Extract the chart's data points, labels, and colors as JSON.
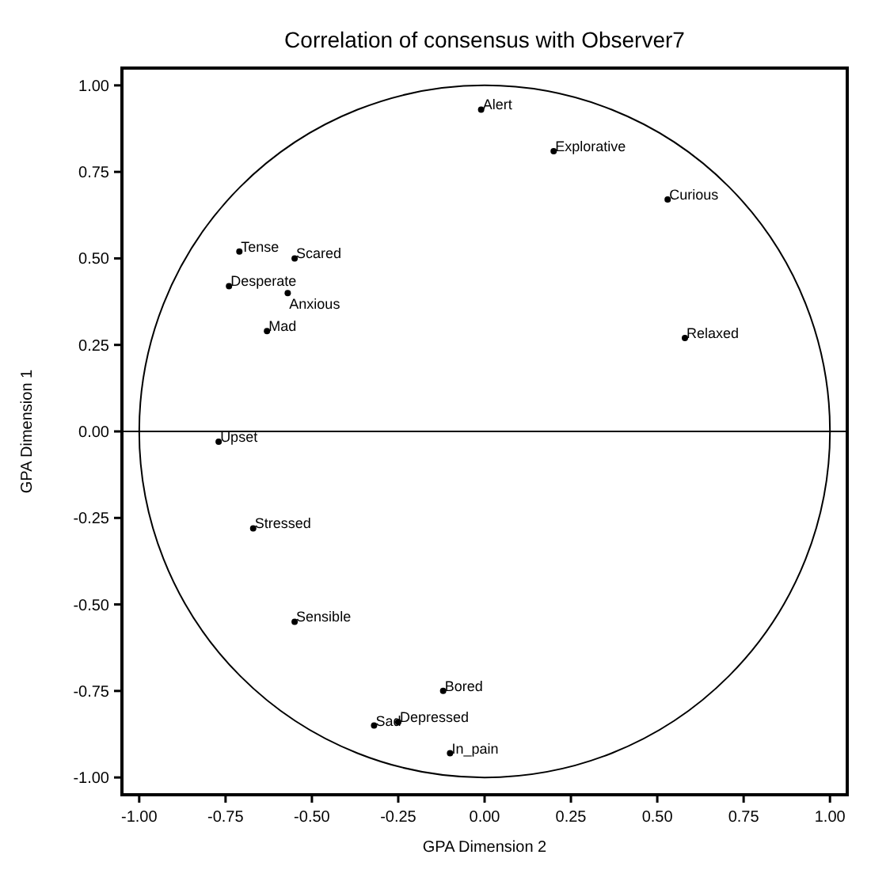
{
  "chart_data": {
    "type": "scatter",
    "title": "Correlation of consensus with Observer7",
    "xlabel": "GPA Dimension 2",
    "ylabel": "GPA Dimension 1",
    "xlim": [
      -1.05,
      1.05
    ],
    "ylim": [
      -1.05,
      1.05
    ],
    "xticks": [
      {
        "value": -1,
        "label": "-1.00"
      },
      {
        "value": -0.75,
        "label": "-0.75"
      },
      {
        "value": -0.5,
        "label": "-0.50"
      },
      {
        "value": -0.25,
        "label": "-0.25"
      },
      {
        "value": 0,
        "label": "0.00"
      },
      {
        "value": 0.25,
        "label": "0.25"
      },
      {
        "value": 0.5,
        "label": "0.50"
      },
      {
        "value": 0.75,
        "label": "0.75"
      },
      {
        "value": 1,
        "label": "1.00"
      }
    ],
    "yticks": [
      {
        "value": -1,
        "label": "-1.00"
      },
      {
        "value": -0.75,
        "label": "-0.75"
      },
      {
        "value": -0.5,
        "label": "-0.50"
      },
      {
        "value": -0.25,
        "label": "-0.25"
      },
      {
        "value": 0,
        "label": "0.00"
      },
      {
        "value": 0.25,
        "label": "0.25"
      },
      {
        "value": 0.5,
        "label": "0.50"
      },
      {
        "value": 0.75,
        "label": "0.75"
      },
      {
        "value": 1,
        "label": "1.00"
      }
    ],
    "grid": false,
    "marker": "circle",
    "ref_lines": [
      {
        "axis": "y",
        "value": 0,
        "color": "#000000"
      }
    ],
    "series": [
      {
        "color": "#000000",
        "x": [
          -0.01,
          0.2,
          0.53,
          0.58,
          -0.71,
          -0.55,
          -0.74,
          -0.57,
          -0.63,
          -0.77,
          -0.67,
          -0.55,
          -0.12,
          -0.32,
          -0.25,
          -0.1
        ],
        "values": [
          0.93,
          0.81,
          0.67,
          0.27,
          0.52,
          0.5,
          0.42,
          0.4,
          0.29,
          -0.03,
          -0.28,
          -0.55,
          -0.75,
          -0.85,
          -0.84,
          -0.93
        ]
      }
    ],
    "annotations": [
      {
        "text": "Alert",
        "x": -0.01,
        "y": 0.93
      },
      {
        "text": "Explorative",
        "x": 0.2,
        "y": 0.81
      },
      {
        "text": "Curious",
        "x": 0.53,
        "y": 0.67
      },
      {
        "text": "Relaxed",
        "x": 0.58,
        "y": 0.27
      },
      {
        "text": "Tense",
        "x": -0.71,
        "y": 0.52
      },
      {
        "text": "Scared",
        "x": -0.55,
        "y": 0.5
      },
      {
        "text": "Desperate",
        "x": -0.74,
        "y": 0.42
      },
      {
        "text": "Anxious",
        "x": -0.57,
        "y": 0.4
      },
      {
        "text": "Mad",
        "x": -0.63,
        "y": 0.29
      },
      {
        "text": "Upset",
        "x": -0.77,
        "y": -0.03
      },
      {
        "text": "Stressed",
        "x": -0.67,
        "y": -0.28
      },
      {
        "text": "Sensible",
        "x": -0.55,
        "y": -0.55
      },
      {
        "text": "Bored",
        "x": -0.12,
        "y": -0.75
      },
      {
        "text": "Sad",
        "x": -0.32,
        "y": -0.85
      },
      {
        "text": "Depressed",
        "x": -0.25,
        "y": -0.84
      },
      {
        "text": "In_pain",
        "x": -0.1,
        "y": -0.93
      }
    ]
  }
}
